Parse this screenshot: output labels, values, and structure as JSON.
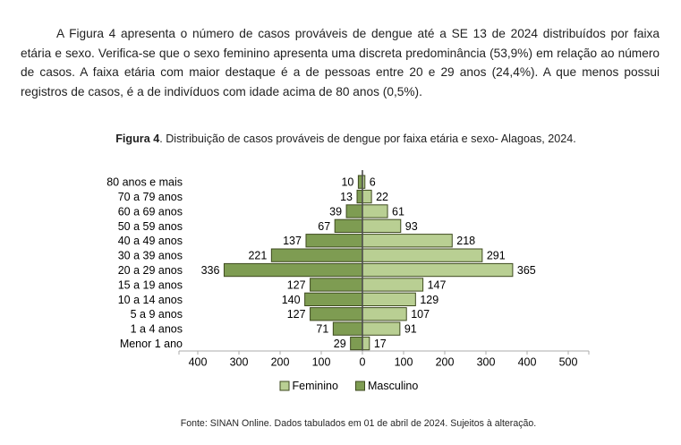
{
  "page": {
    "paragraph": "A Figura 4 apresenta o número de casos prováveis de dengue até a SE 13 de 2024 distribuídos por faixa etária e sexo. Verifica-se que o sexo feminino apresenta uma discreta predominância (53,9%) em relação ao número de casos. A faixa etária com maior destaque é a de pessoas entre 20 e 29 anos (24,4%). A que menos possui registros de casos, é a de indivíduos com idade acima de 80 anos (0,5%).",
    "caption": {
      "label": "Figura 4",
      "text": ". Distribuição de casos prováveis de dengue por faixa etária e sexo- Alagoas, 2024."
    },
    "footer": "Fonte: SINAN Online. Dados tabulados em 01 de abril de 2024. Sujeitos à alteração."
  },
  "chart_data": {
    "type": "bar",
    "subtype": "population_pyramid",
    "title": "Distribuição de casos prováveis de dengue por faixa etária e sexo - Alagoas, 2024",
    "categories": [
      "80 anos e mais",
      "70 a 79 anos",
      "60 a 69 anos",
      "50 a 59 anos",
      "40 a 49 anos",
      "30 a 39 anos",
      "20 a 29 anos",
      "15 a 19 anos",
      "10 a 14 anos",
      "5 a 9 anos",
      "1 a 4 anos",
      "Menor 1 ano"
    ],
    "series": [
      {
        "name": "Masculino",
        "side": "left",
        "color": "#7E9C52",
        "values": [
          10,
          13,
          39,
          67,
          137,
          221,
          336,
          127,
          140,
          127,
          71,
          29
        ]
      },
      {
        "name": "Feminino",
        "side": "right",
        "color": "#B9CF93",
        "values": [
          6,
          22,
          61,
          93,
          218,
          291,
          365,
          147,
          129,
          107,
          91,
          17
        ]
      }
    ],
    "legend": [
      {
        "label": "Feminino",
        "color": "#B9CF93"
      },
      {
        "label": "Masculino",
        "color": "#7E9C52"
      }
    ],
    "axis": {
      "tick_values": [
        -400,
        -300,
        -200,
        -100,
        0,
        100,
        200,
        300,
        400,
        500
      ],
      "tick_labels": [
        "400",
        "300",
        "200",
        "100",
        "0",
        "100",
        "200",
        "300",
        "400",
        "500"
      ],
      "left_max": 400,
      "right_max": 500,
      "tick_interval": 100,
      "grid": false,
      "legend_position": "bottom"
    },
    "colors": {
      "bar_border": "#3E4A1F",
      "axis_line": "#ABABAB",
      "center_line": "#4D4D4D",
      "text": "#000000"
    }
  }
}
